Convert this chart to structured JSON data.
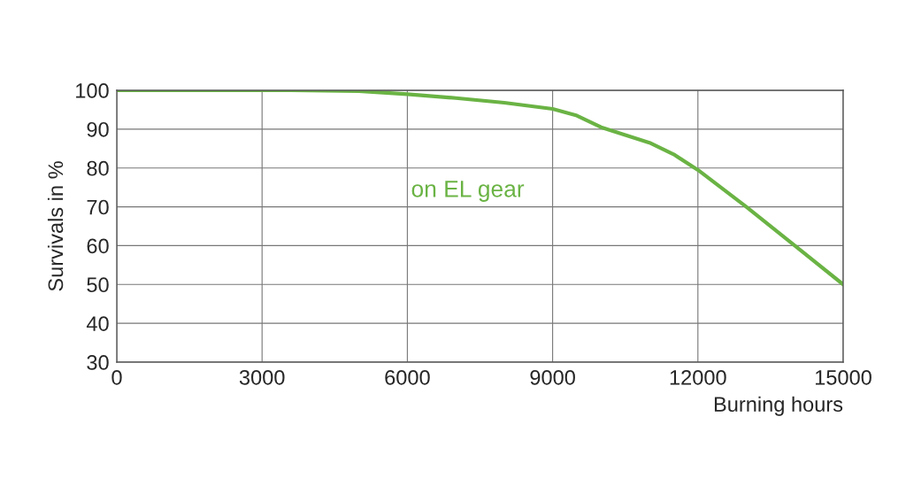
{
  "chart_data": {
    "type": "line",
    "xlabel": "Burning hours",
    "ylabel": "Survivals in %",
    "x": [
      0,
      3000,
      3600,
      5000,
      6000,
      7000,
      8000,
      9000,
      9500,
      10000,
      10500,
      11000,
      11500,
      12000,
      13000,
      14000,
      15000
    ],
    "series": [
      {
        "name": "on EL gear",
        "color": "#6ab344",
        "values": [
          100,
          100,
          100,
          99.8,
          99,
          98,
          96.8,
          95.2,
          93.5,
          90.5,
          88.5,
          86.5,
          83.5,
          79.5,
          70,
          60,
          50
        ]
      }
    ],
    "xlim": [
      0,
      15000
    ],
    "xticks": [
      0,
      3000,
      6000,
      9000,
      12000,
      15000
    ],
    "ylim": [
      30,
      100
    ],
    "yticks": [
      30,
      40,
      50,
      60,
      70,
      80,
      90,
      100
    ],
    "grid": true,
    "marker": "none",
    "line_style": "solid"
  }
}
